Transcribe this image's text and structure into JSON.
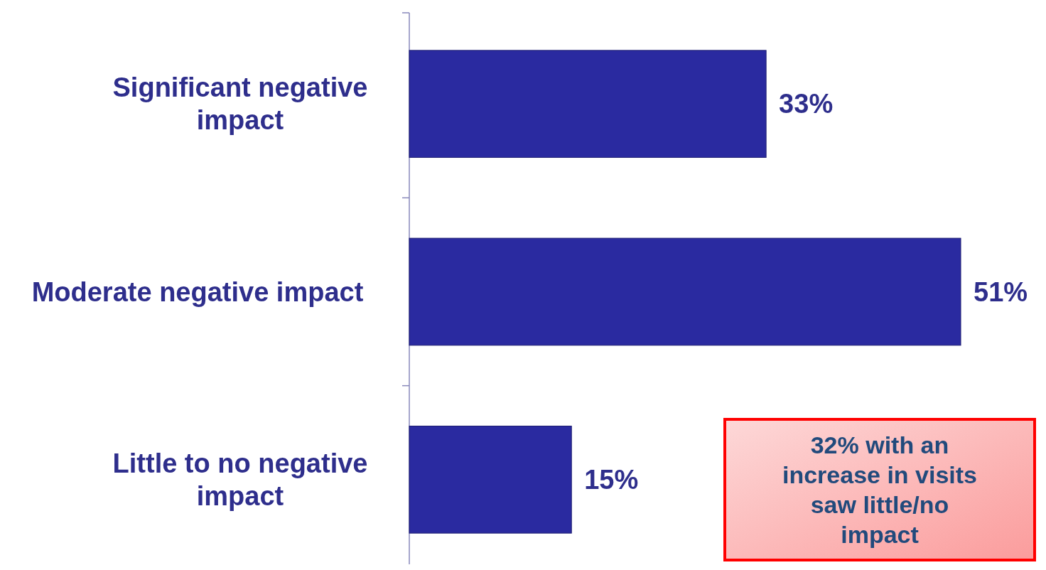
{
  "chart_data": {
    "type": "bar",
    "orientation": "horizontal",
    "categories": [
      "Significant negative impact",
      "Moderate negative impact",
      "Little to no negative impact"
    ],
    "values": [
      33,
      51,
      15
    ],
    "color": "#2a2aa0",
    "value_labels": [
      "33%",
      "51%",
      "15%"
    ],
    "annotations": [
      "32% with an increase in visits saw little/no impact"
    ]
  }
}
